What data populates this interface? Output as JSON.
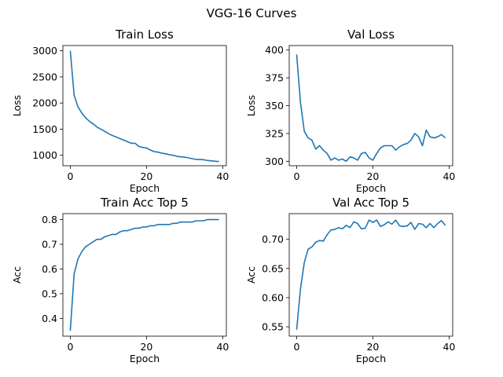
{
  "figure": {
    "title": "VGG-16 Curves"
  },
  "chart_data": [
    {
      "type": "line",
      "title": "Train Loss",
      "xlabel": "Epoch",
      "ylabel": "Loss",
      "xlim": [
        -1.95,
        40.95
      ],
      "ylim": [
        800,
        3100
      ],
      "xticks": [
        0,
        20,
        40
      ],
      "yticks": [
        1000,
        1500,
        2000,
        2500,
        3000
      ],
      "color": "#1f77b4",
      "x": [
        0,
        1,
        2,
        3,
        4,
        5,
        6,
        7,
        8,
        9,
        10,
        11,
        12,
        13,
        14,
        15,
        16,
        17,
        18,
        19,
        20,
        21,
        22,
        23,
        24,
        25,
        26,
        27,
        28,
        29,
        30,
        31,
        32,
        33,
        34,
        35,
        36,
        37,
        38,
        39
      ],
      "values": [
        3000,
        2150,
        1930,
        1810,
        1720,
        1650,
        1600,
        1540,
        1500,
        1460,
        1415,
        1380,
        1350,
        1320,
        1290,
        1260,
        1230,
        1230,
        1170,
        1150,
        1140,
        1100,
        1070,
        1060,
        1040,
        1030,
        1010,
        1000,
        980,
        970,
        965,
        950,
        935,
        920,
        920,
        915,
        900,
        895,
        885,
        880
      ]
    },
    {
      "type": "line",
      "title": "Val Loss",
      "xlabel": "Epoch",
      "ylabel": "Loss",
      "xlim": [
        -1.95,
        40.95
      ],
      "ylim": [
        296,
        404
      ],
      "xticks": [
        0,
        20,
        40
      ],
      "yticks": [
        300,
        325,
        350,
        375,
        400
      ],
      "color": "#1f77b4",
      "x": [
        0,
        1,
        2,
        3,
        4,
        5,
        6,
        7,
        8,
        9,
        10,
        11,
        12,
        13,
        14,
        15,
        16,
        17,
        18,
        19,
        20,
        21,
        22,
        23,
        24,
        25,
        26,
        27,
        28,
        29,
        30,
        31,
        32,
        33,
        34,
        35,
        36,
        37,
        38,
        39
      ],
      "values": [
        396,
        353,
        327,
        321,
        319,
        311,
        314,
        310,
        307,
        301,
        303,
        301,
        302,
        300,
        304,
        303,
        301,
        307,
        308,
        303,
        301,
        307,
        312,
        314,
        314,
        314,
        310,
        313,
        315,
        316,
        319,
        325,
        322,
        314,
        328,
        322,
        321,
        322,
        324,
        321
      ]
    },
    {
      "type": "line",
      "title": "Train Acc Top 5",
      "xlabel": "Epoch",
      "ylabel": "Acc",
      "xlim": [
        -1.95,
        40.95
      ],
      "ylim": [
        0.328,
        0.824
      ],
      "xticks": [
        0,
        20,
        40
      ],
      "yticks": [
        0.4,
        0.5,
        0.6,
        0.7,
        0.8
      ],
      "ytick_labels": [
        "0.4",
        "0.5",
        "0.6",
        "0.7",
        "0.8"
      ],
      "color": "#1f77b4",
      "x": [
        0,
        1,
        2,
        3,
        4,
        5,
        6,
        7,
        8,
        9,
        10,
        11,
        12,
        13,
        14,
        15,
        16,
        17,
        18,
        19,
        20,
        21,
        22,
        23,
        24,
        25,
        26,
        27,
        28,
        29,
        30,
        31,
        32,
        33,
        34,
        35,
        36,
        37,
        38,
        39
      ],
      "values": [
        0.35,
        0.58,
        0.64,
        0.67,
        0.69,
        0.7,
        0.71,
        0.72,
        0.72,
        0.73,
        0.735,
        0.74,
        0.74,
        0.75,
        0.755,
        0.755,
        0.76,
        0.765,
        0.765,
        0.77,
        0.77,
        0.775,
        0.775,
        0.78,
        0.78,
        0.78,
        0.78,
        0.785,
        0.785,
        0.79,
        0.79,
        0.79,
        0.79,
        0.795,
        0.795,
        0.795,
        0.8,
        0.8,
        0.8,
        0.8
      ]
    },
    {
      "type": "line",
      "title": "Val Acc Top 5",
      "xlabel": "Epoch",
      "ylabel": "Acc",
      "xlim": [
        -1.95,
        40.95
      ],
      "ylim": [
        0.534,
        0.744
      ],
      "xticks": [
        0,
        20,
        40
      ],
      "yticks": [
        0.55,
        0.6,
        0.65,
        0.7
      ],
      "ytick_labels": [
        "0.55",
        "0.60",
        "0.65",
        "0.70"
      ],
      "color": "#1f77b4",
      "x": [
        0,
        1,
        2,
        3,
        4,
        5,
        6,
        7,
        8,
        9,
        10,
        11,
        12,
        13,
        14,
        15,
        16,
        17,
        18,
        19,
        20,
        21,
        22,
        23,
        24,
        25,
        26,
        27,
        28,
        29,
        30,
        31,
        32,
        33,
        34,
        35,
        36,
        37,
        38,
        39
      ],
      "values": [
        0.545,
        0.615,
        0.66,
        0.683,
        0.687,
        0.695,
        0.698,
        0.697,
        0.708,
        0.716,
        0.717,
        0.72,
        0.718,
        0.724,
        0.72,
        0.73,
        0.727,
        0.718,
        0.719,
        0.733,
        0.729,
        0.733,
        0.722,
        0.725,
        0.73,
        0.726,
        0.733,
        0.723,
        0.722,
        0.723,
        0.729,
        0.717,
        0.727,
        0.726,
        0.72,
        0.727,
        0.72,
        0.727,
        0.732,
        0.724
      ]
    }
  ]
}
